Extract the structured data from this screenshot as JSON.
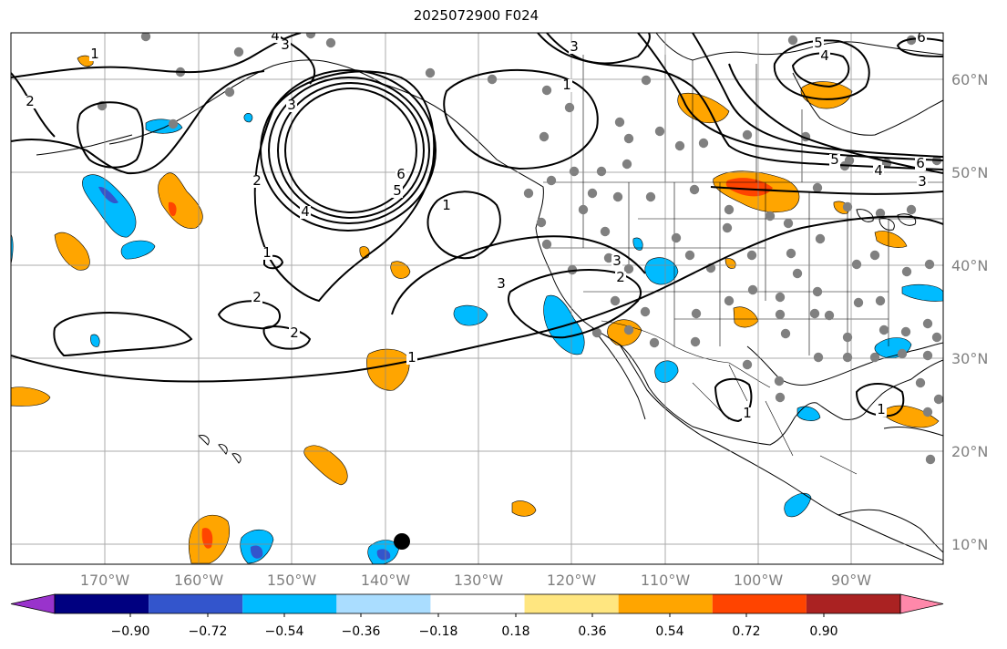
{
  "title": "2025072900 F024",
  "lon_labels": [
    "170°W",
    "160°W",
    "150°W",
    "140°W",
    "130°W",
    "120°W",
    "110°W",
    "100°W",
    "90°W"
  ],
  "lat_labels": [
    "60°N",
    "50°N",
    "40°N",
    "30°N",
    "20°N",
    "10°N"
  ],
  "colorbar": {
    "colors": [
      "#9933cc",
      "#000080",
      "#3355cc",
      "#00bbff",
      "#aaddff",
      "#ffffff",
      "#ffe680",
      "#ffa500",
      "#ff4400",
      "#aa2222",
      "#ff88aa"
    ],
    "tick_labels": [
      "−0.90",
      "−0.72",
      "−0.54",
      "−0.36",
      "−0.18",
      "0.18",
      "0.36",
      "0.54",
      "0.72",
      "0.90"
    ]
  },
  "contour_labels": [
    "1",
    "2",
    "3",
    "4",
    "5",
    "6"
  ],
  "colors": {
    "contour": "#000000",
    "coast": "#000000",
    "grid": "#888888",
    "station": "#808080",
    "axis_text": "#808080"
  }
}
